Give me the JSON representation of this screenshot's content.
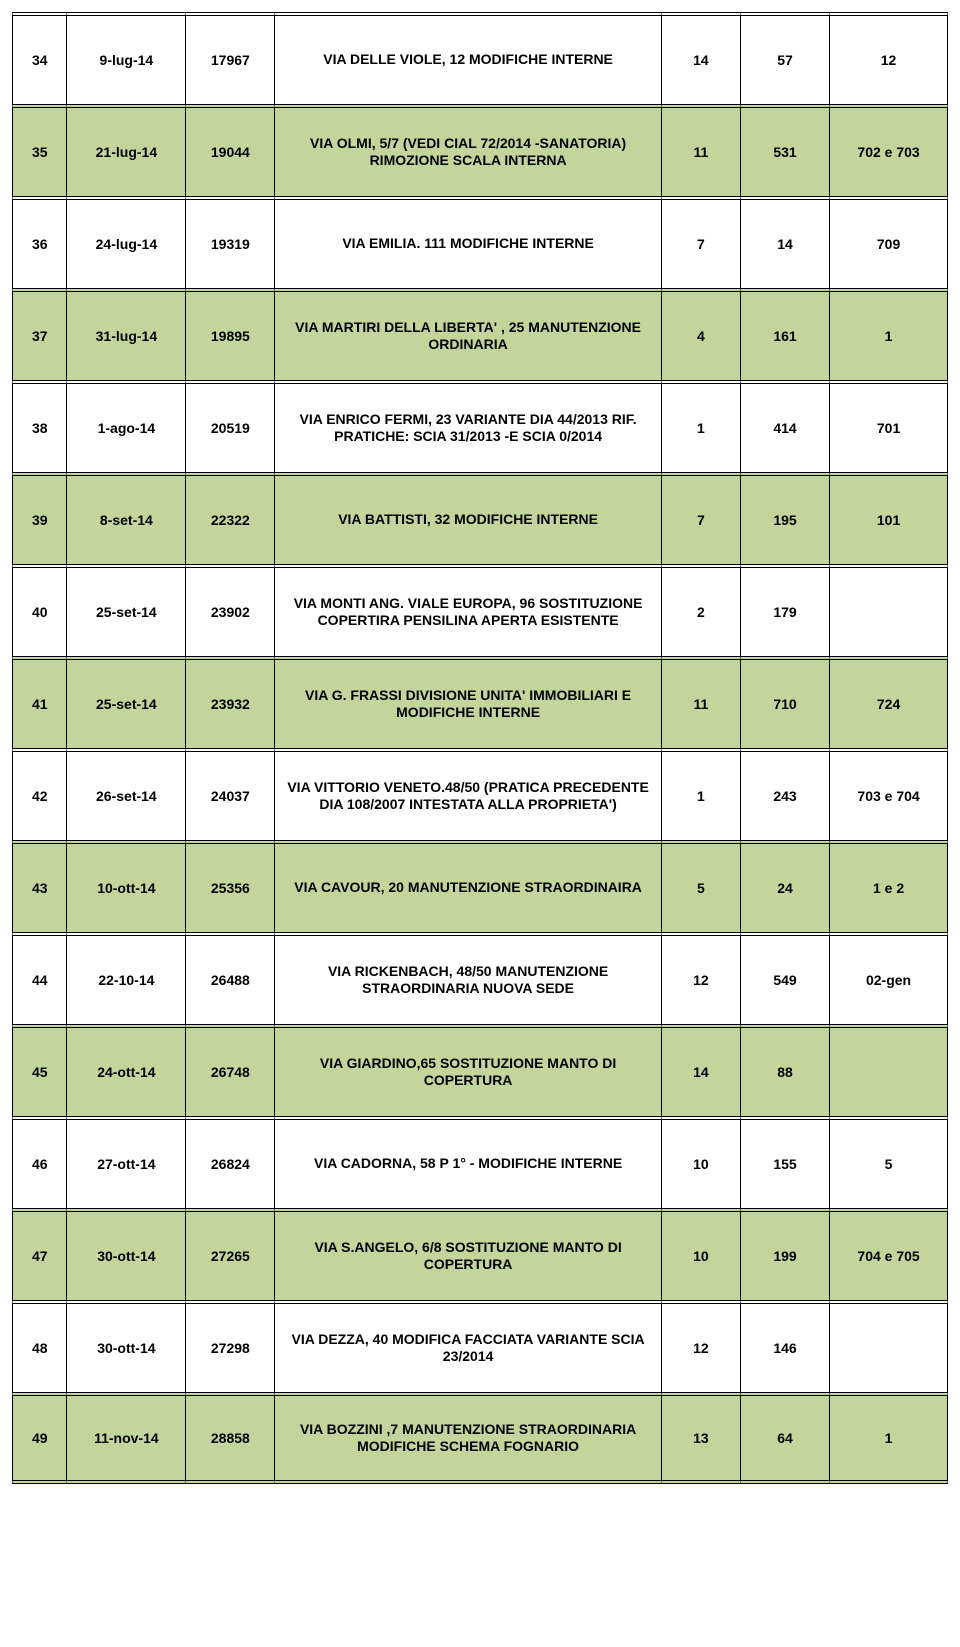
{
  "colors": {
    "row_green": "#c2d69b",
    "row_white": "#ffffff",
    "border": "#000000",
    "text": "#000000"
  },
  "typography": {
    "font_family": "Arial",
    "font_size_pt": 11,
    "font_weight": "bold"
  },
  "column_widths_percent": [
    5.5,
    12,
    9,
    39,
    8,
    9,
    12
  ],
  "rows": [
    {
      "idx": "34",
      "date": "9-lug-14",
      "num": "17967",
      "desc": "VIA DELLE VIOLE, 12 MODIFICHE INTERNE",
      "v1": "14",
      "v2": "57",
      "v3": "12",
      "bg": "white"
    },
    {
      "idx": "35",
      "date": "21-lug-14",
      "num": "19044",
      "desc": "VIA OLMI, 5/7                          (VEDI CIAL 72/2014 -SANATORIA) RIMOZIONE SCALA INTERNA",
      "v1": "11",
      "v2": "531",
      "v3": "702 e 703",
      "bg": "green"
    },
    {
      "idx": "36",
      "date": "24-lug-14",
      "num": "19319",
      "desc": "VIA EMILIA. 111 MODIFICHE INTERNE",
      "v1": "7",
      "v2": "14",
      "v3": "709",
      "bg": "white"
    },
    {
      "idx": "37",
      "date": "31-lug-14",
      "num": "19895",
      "desc": "VIA MARTIRI DELLA LIBERTA' , 25 MANUTENZIONE ORDINARIA",
      "v1": "4",
      "v2": "161",
      "v3": "1",
      "bg": "green"
    },
    {
      "idx": "38",
      "date": "1-ago-14",
      "num": "20519",
      "desc": "VIA ENRICO FERMI, 23 VARIANTE DIA 44/2013 RIF. PRATICHE:  SCIA 31/2013 -E SCIA 0/2014",
      "v1": "1",
      "v2": "414",
      "v3": "701",
      "bg": "white"
    },
    {
      "idx": "39",
      "date": "8-set-14",
      "num": "22322",
      "desc": "VIA BATTISTI, 32 MODIFICHE INTERNE",
      "v1": "7",
      "v2": "195",
      "v3": "101",
      "bg": "green"
    },
    {
      "idx": "40",
      "date": "25-set-14",
      "num": "23902",
      "desc": "VIA MONTI ANG. VIALE EUROPA, 96 SOSTITUZIONE COPERTIRA PENSILINA APERTA ESISTENTE",
      "v1": "2",
      "v2": "179",
      "v3": "",
      "bg": "white"
    },
    {
      "idx": "41",
      "date": "25-set-14",
      "num": "23932",
      "desc": "VIA G. FRASSI DIVISIONE UNITA' IMMOBILIARI E MODIFICHE INTERNE",
      "v1": "11",
      "v2": "710",
      "v3": "724",
      "bg": "green"
    },
    {
      "idx": "42",
      "date": "26-set-14",
      "num": "24037",
      "desc": "VIA VITTORIO VENETO.48/50 (PRATICA PRECEDENTE DIA 108/2007 INTESTATA ALLA PROPRIETA')",
      "v1": "1",
      "v2": "243",
      "v3": "703 e 704",
      "bg": "white"
    },
    {
      "idx": "43",
      "date": "10-ott-14",
      "num": "25356",
      "desc": "VIA CAVOUR,  20 MANUTENZIONE STRAORDINAIRA",
      "v1": "5",
      "v2": "24",
      "v3": "1 e 2",
      "bg": "green"
    },
    {
      "idx": "44",
      "date": "22-10-14",
      "num": "26488",
      "desc": "VIA RICKENBACH, 48/50 MANUTENZIONE STRAORDINARIA NUOVA SEDE",
      "v1": "12",
      "v2": "549",
      "v3": "02-gen",
      "bg": "white"
    },
    {
      "idx": "45",
      "date": "24-ott-14",
      "num": "26748",
      "desc": "VIA GIARDINO,65 SOSTITUZIONE MANTO DI COPERTURA",
      "v1": "14",
      "v2": "88",
      "v3": "",
      "bg": "green"
    },
    {
      "idx": "46",
      "date": "27-ott-14",
      "num": "26824",
      "desc": "VIA CADORNA, 58                              P 1° - MODIFICHE INTERNE",
      "v1": "10",
      "v2": "155",
      "v3": "5",
      "bg": "white"
    },
    {
      "idx": "47",
      "date": "30-ott-14",
      "num": "27265",
      "desc": "VIA S.ANGELO, 6/8 SOSTITUZIONE MANTO DI COPERTURA",
      "v1": "10",
      "v2": "199",
      "v3": "704 e 705",
      "bg": "green"
    },
    {
      "idx": "48",
      "date": "30-ott-14",
      "num": "27298",
      "desc": "VIA DEZZA, 40 MODIFICA FACCIATA VARIANTE SCIA 23/2014",
      "v1": "12",
      "v2": "146",
      "v3": "",
      "bg": "white"
    },
    {
      "idx": "49",
      "date": "11-nov-14",
      "num": "28858",
      "desc": "VIA BOZZINI ,7 MANUTENZIONE STRAORDINARIA MODIFICHE SCHEMA FOGNARIO",
      "v1": "13",
      "v2": "64",
      "v3": "1",
      "bg": "green"
    }
  ]
}
